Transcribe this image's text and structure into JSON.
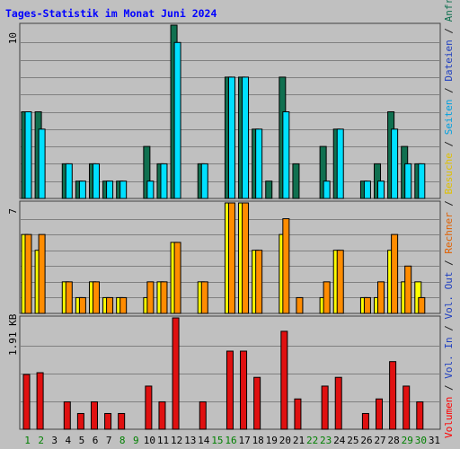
{
  "title": "Tages-Statistik im Monat Juni 2024",
  "axis_labels": {
    "panel1_max": "10",
    "panel2_max": "7",
    "panel3_max": "1.91 KB"
  },
  "right_legend": [
    {
      "text": "Volumen",
      "color": "#ff0000"
    },
    {
      "text": " / ",
      "color": "#202020"
    },
    {
      "text": "Vol. In",
      "color": "#2040c0"
    },
    {
      "text": " / ",
      "color": "#202020"
    },
    {
      "text": "Vol. Out",
      "color": "#2040c0"
    },
    {
      "text": " / ",
      "color": "#202020"
    },
    {
      "text": "Rechner",
      "color": "#e06000"
    },
    {
      "text": " / ",
      "color": "#202020"
    },
    {
      "text": "Besuche",
      "color": "#e0c000"
    },
    {
      "text": " / ",
      "color": "#202020"
    },
    {
      "text": "Seiten",
      "color": "#00a0e0"
    },
    {
      "text": " / ",
      "color": "#202020"
    },
    {
      "text": "Dateien",
      "color": "#2040c0"
    },
    {
      "text": " / ",
      "color": "#202020"
    },
    {
      "text": "Anfragen",
      "color": "#107050"
    }
  ],
  "colors": {
    "background": "#c0c0c0",
    "title": "#0000ff",
    "gridline": "#808080",
    "anfragen": "#107050",
    "dateien": "#00e0ff",
    "besuche": "#ffff00",
    "rechner": "#ff8c00",
    "volumen": "#e01010",
    "weekday_label": "#000000",
    "weekend_label": "#008000"
  },
  "chart_data": {
    "type": "bar",
    "categories": [
      "1",
      "2",
      "3",
      "4",
      "5",
      "6",
      "7",
      "8",
      "9",
      "10",
      "11",
      "12",
      "13",
      "14",
      "15",
      "16",
      "17",
      "18",
      "19",
      "20",
      "21",
      "22",
      "23",
      "24",
      "25",
      "26",
      "27",
      "28",
      "29",
      "30",
      "31"
    ],
    "weekend_days": [
      "1",
      "2",
      "8",
      "9",
      "15",
      "16",
      "22",
      "23",
      "29",
      "30"
    ],
    "panels": [
      {
        "name": "Anfragen / Dateien / Seiten",
        "ylim": [
          0,
          10
        ],
        "series": [
          {
            "name": "Anfragen",
            "color": "#107050",
            "values": [
              5,
              5,
              0,
              2,
              1,
              2,
              1,
              1,
              0,
              3,
              2,
              10,
              0,
              2,
              0,
              7,
              7,
              4,
              1,
              7,
              2,
              0,
              3,
              4,
              0,
              1,
              2,
              5,
              3,
              2,
              0
            ]
          },
          {
            "name": "Dateien",
            "color": "#00e0ff",
            "values": [
              5,
              4,
              0,
              2,
              1,
              2,
              1,
              1,
              0,
              1,
              2,
              9,
              0,
              2,
              0,
              7,
              7,
              4,
              0,
              5,
              0,
              0,
              1,
              4,
              0,
              1,
              1,
              4,
              2,
              2,
              0
            ]
          },
          {
            "name": "Seiten",
            "color": "#00e0ff",
            "values": [
              5,
              4,
              0,
              2,
              1,
              2,
              1,
              1,
              0,
              1,
              2,
              9,
              0,
              2,
              0,
              7,
              7,
              4,
              0,
              5,
              0,
              0,
              1,
              4,
              0,
              1,
              1,
              4,
              2,
              2,
              0
            ]
          }
        ]
      },
      {
        "name": "Besuche / Rechner",
        "ylim": [
          0,
          7
        ],
        "series": [
          {
            "name": "Besuche",
            "color": "#ffff00",
            "values": [
              5,
              4,
              0,
              2,
              1,
              2,
              1,
              1,
              0,
              1,
              2,
              4.5,
              0,
              2,
              0,
              7,
              7,
              4,
              0,
              5,
              0,
              0,
              1,
              4,
              0,
              1,
              1,
              4,
              2,
              2,
              0
            ]
          },
          {
            "name": "Rechner",
            "color": "#ff8c00",
            "values": [
              5,
              5,
              0,
              2,
              1,
              2,
              1,
              1,
              0,
              2,
              2,
              4.5,
              0,
              2,
              0,
              7,
              7,
              4,
              0,
              6,
              1,
              0,
              2,
              4,
              0,
              1,
              2,
              5,
              3,
              1,
              0
            ]
          }
        ]
      },
      {
        "name": "Volumen",
        "ylim": [
          0,
          1.91
        ],
        "unit": "KB",
        "series": [
          {
            "name": "Volumen",
            "color": "#e01010",
            "values": [
              0.94,
              0.97,
              0,
              0.47,
              0.27,
              0.47,
              0.27,
              0.27,
              0,
              0.74,
              0.47,
              1.91,
              0,
              0.47,
              0,
              1.34,
              1.34,
              0.89,
              0,
              1.68,
              0.52,
              0,
              0.74,
              0.89,
              0,
              0.27,
              0.52,
              1.16,
              0.74,
              0.47,
              0
            ]
          }
        ]
      }
    ]
  }
}
